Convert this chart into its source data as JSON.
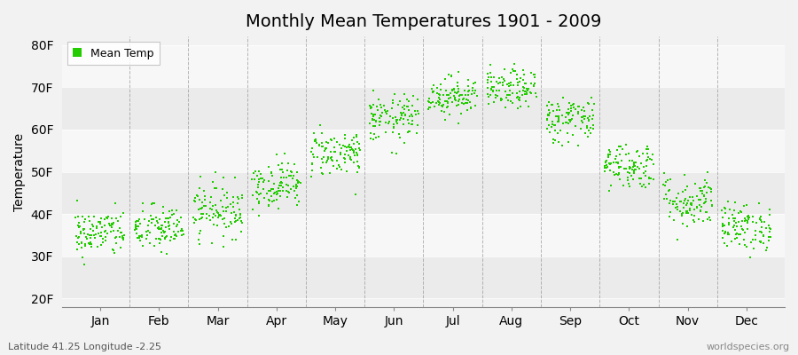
{
  "title": "Monthly Mean Temperatures 1901 - 2009",
  "ylabel": "Temperature",
  "xlabel_bottom_left": "Latitude 41.25 Longitude -2.25",
  "xlabel_bottom_right": "worldspecies.org",
  "legend_label": "Mean Temp",
  "dot_color": "#22cc00",
  "background_color": "#f2f2f2",
  "band_colors": [
    "#ebebeb",
    "#f7f7f7"
  ],
  "yticks": [
    20,
    30,
    40,
    50,
    60,
    70,
    80
  ],
  "ytick_labels": [
    "20F",
    "30F",
    "40F",
    "50F",
    "60F",
    "70F",
    "80F"
  ],
  "ylim": [
    18,
    82
  ],
  "months": [
    "Jan",
    "Feb",
    "Mar",
    "Apr",
    "May",
    "Jun",
    "Jul",
    "Aug",
    "Sep",
    "Oct",
    "Nov",
    "Dec"
  ],
  "mean_temps_F": [
    35.5,
    36.5,
    41.0,
    47.0,
    54.5,
    62.5,
    68.0,
    69.5,
    62.5,
    51.5,
    43.0,
    37.0
  ],
  "std_temps_F": [
    2.8,
    2.8,
    3.2,
    2.8,
    2.8,
    2.8,
    2.3,
    2.3,
    2.8,
    2.8,
    3.2,
    2.8
  ],
  "years": 109,
  "seed": 42,
  "figsize": [
    9.0,
    4.0
  ],
  "dpi": 100,
  "title_fontsize": 14,
  "axis_fontsize": 10,
  "ylabel_fontsize": 10,
  "dot_size": 4
}
